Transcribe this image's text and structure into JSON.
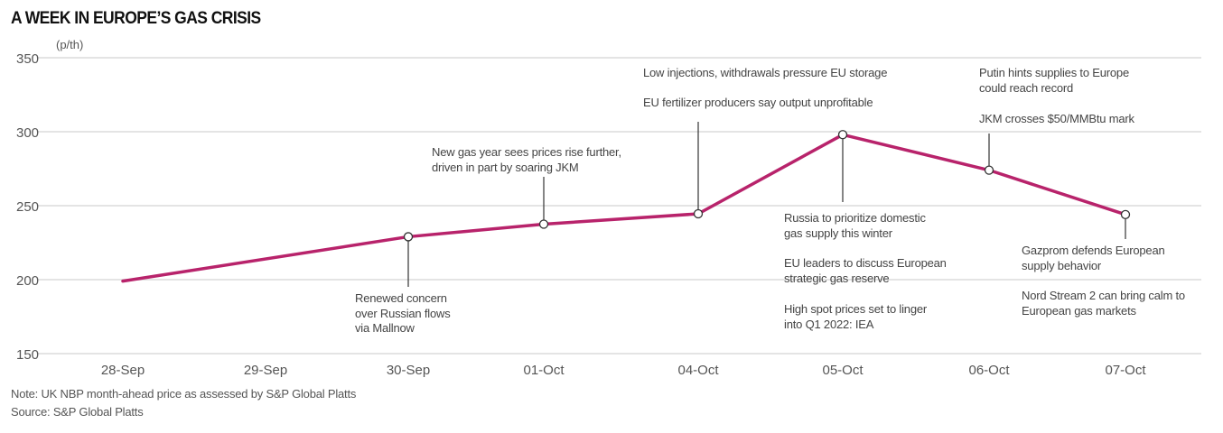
{
  "chart_data": {
    "type": "line",
    "title": "A WEEK IN EUROPE’S GAS CRISIS",
    "ylabel": "(p/th)",
    "xlabel": "",
    "ylim": [
      150,
      350
    ],
    "yticks": [
      150,
      200,
      250,
      300,
      350
    ],
    "grid": true,
    "categories": [
      "28-Sep",
      "29-Sep",
      "30-Sep",
      "01-Oct",
      "04-Oct",
      "05-Oct",
      "06-Oct",
      "07-Oct"
    ],
    "series": [
      {
        "name": "UK NBP month-ahead",
        "color": "#b8236b",
        "points": [
          {
            "x": "28-Sep",
            "y": 199,
            "marker": false
          },
          {
            "x": "30-Sep",
            "y": 229,
            "marker": true
          },
          {
            "x": "01-Oct",
            "y": 237.5,
            "marker": true
          },
          {
            "x": "04-Oct",
            "y": 244.5,
            "marker": true
          },
          {
            "x": "05-Oct",
            "y": 298,
            "marker": true
          },
          {
            "x": "06-Oct",
            "y": 274,
            "marker": true
          },
          {
            "x": "07-Oct",
            "y": 244,
            "marker": true
          }
        ]
      }
    ],
    "annotations": [
      {
        "x": "30-Sep",
        "texts": [
          "Renewed concern\nover Russian flows\nvia Mallnow"
        ]
      },
      {
        "x": "01-Oct",
        "texts": [
          "New gas year sees prices rise further,\ndriven in part by soaring JKM"
        ]
      },
      {
        "x": "04-Oct",
        "texts": [
          "Low injections, withdrawals pressure EU storage",
          "EU fertilizer producers say output unprofitable"
        ]
      },
      {
        "x": "05-Oct",
        "texts": [
          "Russia to prioritize domestic\ngas supply this winter",
          "EU leaders to discuss European\nstrategic gas reserve",
          "High spot prices set to linger\ninto Q1 2022: IEA"
        ]
      },
      {
        "x": "06-Oct",
        "texts": [
          "Putin hints supplies to Europe\ncould reach record",
          "JKM crosses $50/MMBtu mark"
        ]
      },
      {
        "x": "07-Oct",
        "texts": [
          "Gazprom defends European\nsupply behavior",
          "Nord Stream 2 can bring calm to\nEuropean gas markets"
        ]
      }
    ],
    "note": "Note: UK NBP month-ahead price as assessed by S&P Global Platts",
    "source": "Source: S&P Global Platts"
  }
}
